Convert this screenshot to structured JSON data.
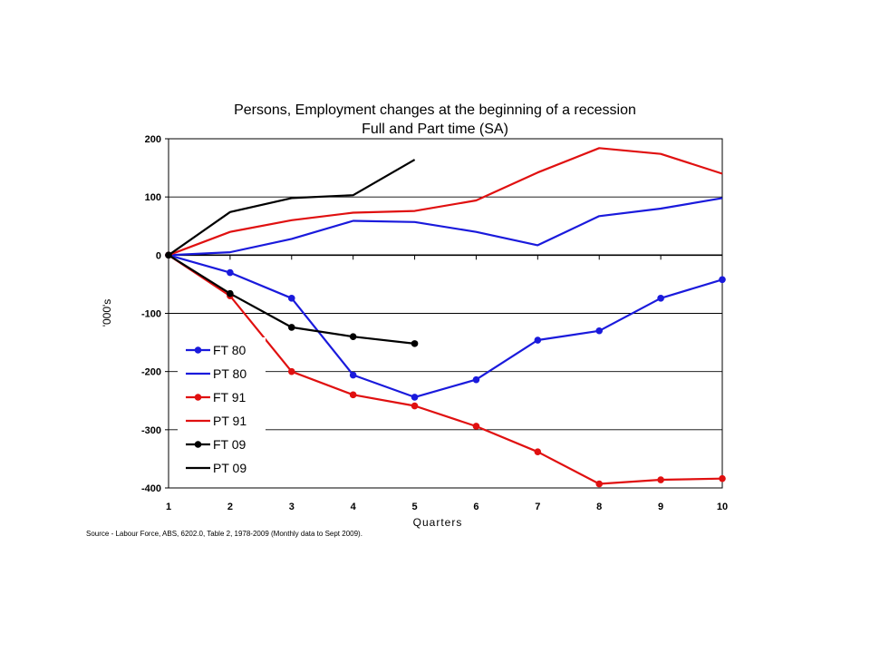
{
  "chart_data": {
    "type": "line",
    "title": "Persons, Employment changes at the beginning of a recession",
    "subtitle": "Full and Part time (SA)",
    "xlabel": "Quarters",
    "ylabel": "'000's",
    "source": "Source - Labour Force, ABS, 6202.0, Table 2, 1978-2009 (Monthly data to Sept 2009).",
    "xlim": [
      1,
      10
    ],
    "ylim": [
      -400,
      200
    ],
    "x_ticks": [
      "1",
      "2",
      "3",
      "4",
      "5",
      "6",
      "7",
      "8",
      "9",
      "10"
    ],
    "y_ticks": [
      "200",
      "100",
      "0",
      "-100",
      "-200",
      "-300",
      "-400"
    ],
    "grid": "horizontal",
    "legend_position": "bottom-left",
    "series": [
      {
        "name": "FT 80",
        "color": "#1a1adc",
        "marker": true,
        "x": [
          1,
          2,
          3,
          4,
          5,
          6,
          7,
          8,
          9,
          10
        ],
        "values": [
          0,
          -30,
          -74,
          -206,
          -244,
          -214,
          -146,
          -130,
          -74,
          -42
        ]
      },
      {
        "name": "PT 80",
        "color": "#1a1adc",
        "marker": false,
        "x": [
          1,
          2,
          3,
          4,
          5,
          6,
          7,
          8,
          9,
          10
        ],
        "values": [
          0,
          5,
          28,
          59,
          57,
          40,
          17,
          67,
          80,
          98
        ]
      },
      {
        "name": "FT 91",
        "color": "#e01010",
        "marker": true,
        "x": [
          1,
          2,
          3,
          4,
          5,
          6,
          7,
          8,
          9,
          10
        ],
        "values": [
          0,
          -70,
          -200,
          -240,
          -259,
          -294,
          -338,
          -393,
          -386,
          -384
        ]
      },
      {
        "name": "PT 91",
        "color": "#e01010",
        "marker": false,
        "x": [
          1,
          2,
          3,
          4,
          5,
          6,
          7,
          8,
          9,
          10
        ],
        "values": [
          0,
          40,
          60,
          73,
          76,
          94,
          142,
          184,
          174,
          140
        ]
      },
      {
        "name": "FT 09",
        "color": "#000000",
        "marker": true,
        "x": [
          1,
          2,
          3,
          4,
          5
        ],
        "values": [
          0,
          -66,
          -124,
          -140,
          -152
        ]
      },
      {
        "name": "PT 09",
        "color": "#000000",
        "marker": false,
        "x": [
          1,
          2,
          3,
          4,
          5
        ],
        "values": [
          0,
          74,
          98,
          103,
          164
        ]
      }
    ]
  }
}
